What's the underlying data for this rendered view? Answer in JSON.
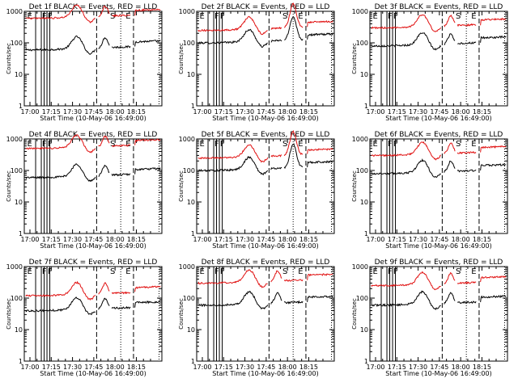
{
  "figure": {
    "ylabel": "Counts/sec",
    "xlabel": "Start Time (10-May-06 16:49:00)",
    "x_tick_labels": [
      "17:00",
      "17:15",
      "17:30",
      "17:45",
      "18:00",
      "18:15"
    ],
    "y_tick_labels": [
      "1",
      "10",
      "100",
      "1000"
    ],
    "marker_labels": [
      "E",
      "F",
      "F",
      "S",
      "E"
    ],
    "colors": {
      "black": "#000000",
      "red": "#e01010"
    }
  },
  "chart_data": [
    {
      "type": "line",
      "title": "Det 1f BLACK = Events, RED = LLD",
      "xlabel": "Start Time (10-May-06 16:49:00)",
      "ylabel": "Counts/sec",
      "ylim": [
        1,
        1000
      ],
      "yscale": "log",
      "series": [
        {
          "name": "Events",
          "color": "black",
          "approx_level": 60
        },
        {
          "name": "LLD",
          "color": "red",
          "approx_level": 600
        }
      ]
    },
    {
      "type": "line",
      "title": "Det 2f BLACK = Events, RED = LLD",
      "xlabel": "Start Time (10-May-06 16:49:00)",
      "ylabel": "Counts/sec",
      "ylim": [
        1,
        1000
      ],
      "yscale": "log",
      "series": [
        {
          "name": "Events",
          "color": "black",
          "approx_level": 100
        },
        {
          "name": "LLD",
          "color": "red",
          "approx_level": 250
        }
      ]
    },
    {
      "type": "line",
      "title": "Det 3f BLACK = Events, RED = LLD",
      "xlabel": "Start Time (10-May-06 16:49:00)",
      "ylabel": "Counts/sec",
      "ylim": [
        1,
        1000
      ],
      "yscale": "log",
      "series": [
        {
          "name": "Events",
          "color": "black",
          "approx_level": 80
        },
        {
          "name": "LLD",
          "color": "red",
          "approx_level": 300
        }
      ]
    },
    {
      "type": "line",
      "title": "Det 4f BLACK = Events, RED = LLD",
      "xlabel": "Start Time (10-May-06 16:49:00)",
      "ylabel": "Counts/sec",
      "ylim": [
        1,
        1000
      ],
      "yscale": "log",
      "series": [
        {
          "name": "Events",
          "color": "black",
          "approx_level": 60
        },
        {
          "name": "LLD",
          "color": "red",
          "approx_level": 500
        }
      ]
    },
    {
      "type": "line",
      "title": "Det 5f BLACK = Events, RED = LLD",
      "xlabel": "Start Time (10-May-06 16:49:00)",
      "ylabel": "Counts/sec",
      "ylim": [
        1,
        1000
      ],
      "yscale": "log",
      "series": [
        {
          "name": "Events",
          "color": "black",
          "approx_level": 100
        },
        {
          "name": "LLD",
          "color": "red",
          "approx_level": 250
        }
      ]
    },
    {
      "type": "line",
      "title": "Det 6f BLACK = Events, RED = LLD",
      "xlabel": "Start Time (10-May-06 16:49:00)",
      "ylabel": "Counts/sec",
      "ylim": [
        1,
        1000
      ],
      "yscale": "log",
      "series": [
        {
          "name": "Events",
          "color": "black",
          "approx_level": 80
        },
        {
          "name": "LLD",
          "color": "red",
          "approx_level": 300
        }
      ]
    },
    {
      "type": "line",
      "title": "Det 7f BLACK = Events, RED = LLD",
      "xlabel": "Start Time (10-May-06 16:49:00)",
      "ylabel": "Counts/sec",
      "ylim": [
        1,
        1000
      ],
      "yscale": "log",
      "series": [
        {
          "name": "Events",
          "color": "black",
          "approx_level": 40
        },
        {
          "name": "LLD",
          "color": "red",
          "approx_level": 120
        }
      ]
    },
    {
      "type": "line",
      "title": "Det 8f BLACK = Events, RED = LLD",
      "xlabel": "Start Time (10-May-06 16:49:00)",
      "ylabel": "Counts/sec",
      "ylim": [
        1,
        1000
      ],
      "yscale": "log",
      "series": [
        {
          "name": "Events",
          "color": "black",
          "approx_level": 60
        },
        {
          "name": "LLD",
          "color": "red",
          "approx_level": 300
        }
      ]
    },
    {
      "type": "line",
      "title": "Det 9f BLACK = Events, RED = LLD",
      "xlabel": "Start Time (10-May-06 16:49:00)",
      "ylabel": "Counts/sec",
      "ylim": [
        1,
        1000
      ],
      "yscale": "log",
      "series": [
        {
          "name": "Events",
          "color": "black",
          "approx_level": 60
        },
        {
          "name": "LLD",
          "color": "red",
          "approx_level": 250
        }
      ]
    }
  ]
}
